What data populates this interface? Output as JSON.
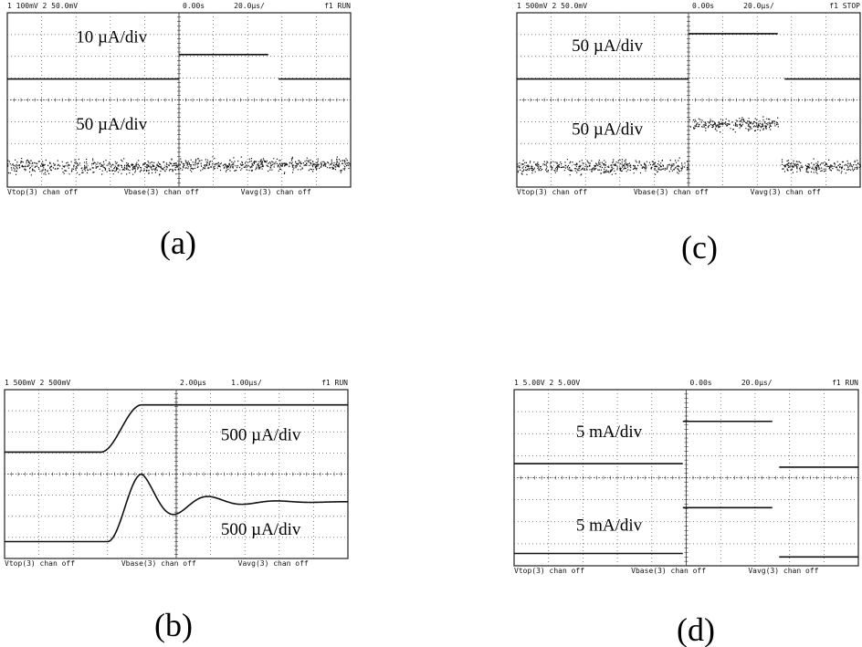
{
  "panels": [
    {
      "header": {
        "channels": "1 100mV 2 50.0mV",
        "time": "0.00s",
        "scale": "20.0µs/",
        "trigger": "f1 RUN"
      },
      "labels": [
        "10 µA/div",
        "50 µA/div"
      ],
      "footer": [
        "Vtop(3) chan off",
        "Vbase(3) chan off",
        "Vavg(3) chan off"
      ],
      "caption": "(a)"
    },
    {
      "header": {
        "channels": "1 500mV 2 50.0mV",
        "time": "0.00s",
        "scale": "20.0µs/",
        "trigger": "f1 STOP"
      },
      "labels": [
        "50 µA/div",
        "50 µA/div"
      ],
      "footer": [
        "Vtop(3) chan off",
        "Vbase(3) chan off",
        "Vavg(3) chan off"
      ],
      "caption": "(c)"
    },
    {
      "header": {
        "channels": "1 500mV 2 500mV",
        "time": "2.00µs",
        "scale": "1.00µs/",
        "trigger": "f1 RUN"
      },
      "labels": [
        "500 µA/div",
        "500 µA/div"
      ],
      "footer": [
        "Vtop(3) chan off",
        "Vbase(3) chan off",
        "Vavg(3) chan off"
      ],
      "caption": "(b)"
    },
    {
      "header": {
        "channels": "1 5.00V 2 5.00V",
        "time": "0.00s",
        "scale": "20.0µs/",
        "trigger": "f1 RUN"
      },
      "labels": [
        "5 mA/div",
        "5 mA/div"
      ],
      "footer": [
        "Vtop(3) chan off",
        "Vbase(3) chan off",
        "Vavg(3) chan off"
      ],
      "caption": "(d)"
    }
  ]
}
